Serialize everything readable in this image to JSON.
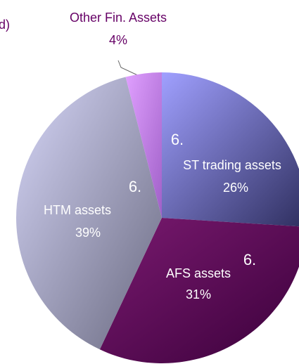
{
  "chart_data": {
    "type": "pie",
    "title": "d)",
    "categories": [
      "ST trading assets",
      "AFS assets",
      "HTM assets",
      "Other Fin. Assets"
    ],
    "values": [
      26,
      31,
      39,
      4
    ],
    "value_labels": [
      "26%",
      "31%",
      "39%",
      "4%"
    ],
    "colors": [
      "#8f8ff0",
      "#6a0a5e",
      "#c8c8ec",
      "#d48cf0"
    ],
    "annotations": [
      "6.",
      "6.",
      "6."
    ]
  }
}
